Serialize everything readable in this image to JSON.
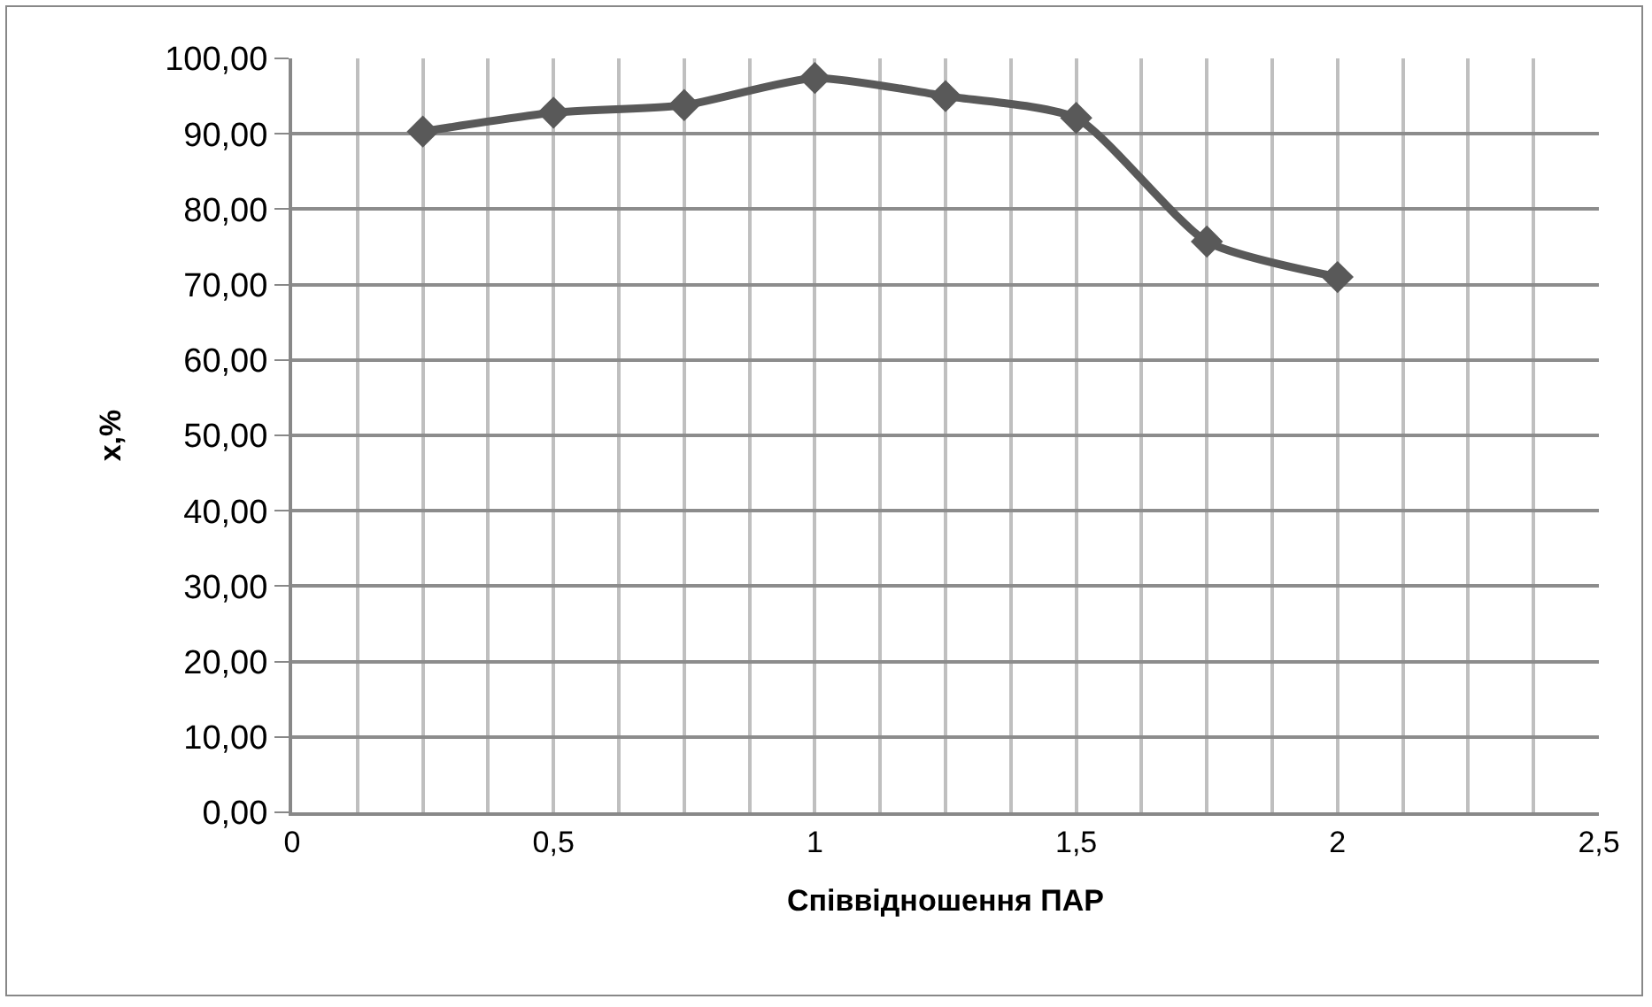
{
  "chart_data": {
    "type": "line",
    "xlabel": "Співвідношення ПАР",
    "ylabel": "x,%",
    "x": [
      0.25,
      0.5,
      0.75,
      1,
      1.25,
      1.5,
      1.75,
      2
    ],
    "series": [
      {
        "color": "#595959",
        "values": [
          90.3,
          92.8,
          93.8,
          97.4,
          95.0,
          92.1,
          75.7,
          71.0
        ]
      }
    ],
    "xlim": [
      0,
      2.5
    ],
    "xticks": [
      {
        "value": 0,
        "label": "0"
      },
      {
        "value": 0.125,
        "label": null
      },
      {
        "value": 0.25,
        "label": null
      },
      {
        "value": 0.375,
        "label": null
      },
      {
        "value": 0.5,
        "label": "0,5"
      },
      {
        "value": 0.625,
        "label": null
      },
      {
        "value": 0.75,
        "label": null
      },
      {
        "value": 0.875,
        "label": null
      },
      {
        "value": 1,
        "label": "1"
      },
      {
        "value": 1.125,
        "label": null
      },
      {
        "value": 1.25,
        "label": null
      },
      {
        "value": 1.375,
        "label": null
      },
      {
        "value": 1.5,
        "label": "1,5"
      },
      {
        "value": 1.625,
        "label": null
      },
      {
        "value": 1.75,
        "label": null
      },
      {
        "value": 1.875,
        "label": null
      },
      {
        "value": 2,
        "label": "2"
      },
      {
        "value": 2.125,
        "label": null
      },
      {
        "value": 2.25,
        "label": null
      },
      {
        "value": 2.375,
        "label": null
      },
      {
        "value": 2.5,
        "label": "2,5"
      }
    ],
    "ylim": [
      0,
      100
    ],
    "yticks": [
      {
        "value": 0,
        "label": "0,00"
      },
      {
        "value": 10,
        "label": "10,00"
      },
      {
        "value": 20,
        "label": "20,00"
      },
      {
        "value": 30,
        "label": "30,00"
      },
      {
        "value": 40,
        "label": "40,00"
      },
      {
        "value": 50,
        "label": "50,00"
      },
      {
        "value": 60,
        "label": "60,00"
      },
      {
        "value": 70,
        "label": "70,00"
      },
      {
        "value": 80,
        "label": "80,00"
      },
      {
        "value": 90,
        "label": "90,00"
      },
      {
        "value": 100,
        "label": "100,00"
      }
    ],
    "grid": true,
    "marker": "diamond",
    "line_style": "solid"
  }
}
